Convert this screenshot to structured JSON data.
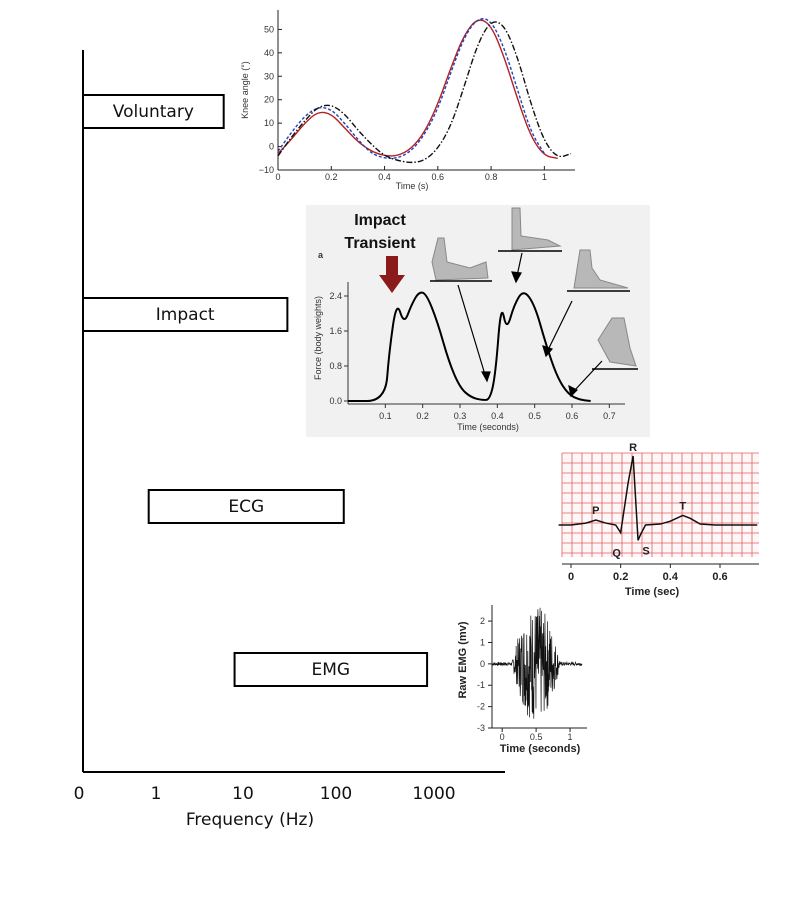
{
  "chart_data": [
    {
      "type": "bar",
      "xscale": "log",
      "xlabel": "Frequency (Hz)",
      "ticks": [
        "0",
        "1",
        "10",
        "100",
        "1000"
      ],
      "bands": [
        {
          "name": "Voluntary",
          "start": 0,
          "end": 6
        },
        {
          "name": "Impact",
          "start": 0,
          "end": 30
        },
        {
          "name": "ECG",
          "start": 0.9,
          "end": 120
        },
        {
          "name": "EMG",
          "start": 8,
          "end": 850
        }
      ],
      "colors": {
        "box": "#000000",
        "text": "#111111"
      }
    },
    {
      "type": "line",
      "xlabel": "Time (s)",
      "ylabel": "Knee angle (°)",
      "xticks": [
        "0",
        "0.2",
        "0.4",
        "0.6",
        "0.8",
        "1"
      ],
      "yticks": [
        "−10",
        "0",
        "10",
        "20",
        "30",
        "40",
        "50"
      ],
      "xlim": [
        0,
        1.1
      ],
      "ylim": [
        -10,
        57
      ],
      "series": [
        {
          "style": "solid",
          "color": "#b22222",
          "x": [
            0,
            0.05,
            0.1,
            0.15,
            0.2,
            0.25,
            0.3,
            0.35,
            0.4,
            0.45,
            0.5,
            0.55,
            0.6,
            0.65,
            0.7,
            0.75,
            0.8,
            0.85,
            0.9,
            0.95,
            1.0,
            1.05
          ],
          "y": [
            -3,
            3,
            10,
            15,
            14,
            8,
            2,
            -2,
            -4,
            -4,
            -1,
            6,
            18,
            34,
            48,
            55,
            52,
            38,
            20,
            4,
            -4,
            -5
          ]
        },
        {
          "style": "dashed",
          "color": "#1f3fbf",
          "x": [
            0,
            0.05,
            0.1,
            0.15,
            0.2,
            0.25,
            0.3,
            0.35,
            0.4,
            0.45,
            0.5,
            0.55,
            0.6,
            0.65,
            0.7,
            0.75,
            0.8,
            0.85,
            0.9,
            0.95,
            1.0
          ],
          "y": [
            -2,
            6,
            13,
            17,
            16,
            10,
            3,
            -3,
            -5,
            -5,
            -2,
            5,
            16,
            32,
            47,
            55,
            54,
            42,
            24,
            6,
            -3
          ]
        },
        {
          "style": "dashdot",
          "color": "#111111",
          "x": [
            0,
            0.05,
            0.1,
            0.15,
            0.2,
            0.25,
            0.3,
            0.35,
            0.4,
            0.45,
            0.5,
            0.55,
            0.6,
            0.65,
            0.7,
            0.75,
            0.8,
            0.85,
            0.9,
            0.95,
            1.0,
            1.05,
            1.1
          ],
          "y": [
            -4,
            4,
            11,
            17,
            18,
            14,
            7,
            1,
            -4,
            -6,
            -7,
            -6,
            -1,
            9,
            26,
            44,
            54,
            52,
            38,
            18,
            2,
            -5,
            -3
          ]
        }
      ]
    },
    {
      "type": "line",
      "title": "Impact Transient",
      "panel": "a",
      "xlabel": "Time (seconds)",
      "ylabel": "Force (body weights)",
      "xticks": [
        "0.1",
        "0.2",
        "0.3",
        "0.4",
        "0.5",
        "0.6",
        "0.7"
      ],
      "yticks": [
        "0.0",
        "0.8",
        "1.6",
        "2.4"
      ],
      "xlim": [
        0,
        0.75
      ],
      "ylim": [
        0,
        2.9
      ],
      "arrow_color": "#8b1a1a",
      "series": [
        {
          "x": [
            0,
            0.1,
            0.11,
            0.13,
            0.15,
            0.17,
            0.19,
            0.21,
            0.24,
            0.27,
            0.3,
            0.33,
            0.36,
            0.38,
            0.395,
            0.41,
            0.425,
            0.445,
            0.47,
            0.5,
            0.53,
            0.56,
            0.59,
            0.62,
            0.65
          ],
          "y": [
            0,
            0,
            1.1,
            2.3,
            1.75,
            2.2,
            2.5,
            2.45,
            1.8,
            0.9,
            0.3,
            0.08,
            0.02,
            0.03,
            0.6,
            2.25,
            1.6,
            2.2,
            2.55,
            2.2,
            1.3,
            0.55,
            0.15,
            0.03,
            0
          ]
        }
      ]
    },
    {
      "type": "line",
      "xlabel": "Time (sec)",
      "xticks": [
        "0",
        "0.2",
        "0.4",
        "0.6"
      ],
      "wave_labels": [
        "P",
        "Q",
        "R",
        "S",
        "T"
      ],
      "grid_color": "#e06060",
      "series": [
        {
          "x": [
            -0.05,
            0.0,
            0.06,
            0.1,
            0.14,
            0.18,
            0.2,
            0.23,
            0.25,
            0.27,
            0.28,
            0.3,
            0.36,
            0.4,
            0.45,
            0.48,
            0.52,
            0.58,
            0.75
          ],
          "y": [
            0,
            0,
            0.1,
            0.26,
            0.1,
            0,
            -0.4,
            2.2,
            3.6,
            -0.8,
            -0.5,
            0,
            0.05,
            0.2,
            0.5,
            0.35,
            0.05,
            0,
            0
          ]
        }
      ]
    },
    {
      "type": "line",
      "xlabel": "Time (seconds)",
      "ylabel": "Raw EMG (mv)",
      "xticks": [
        "0",
        "0.5",
        "1"
      ],
      "yticks": [
        "-3",
        "-2",
        "-1",
        "0",
        "1",
        "2"
      ],
      "xlim": [
        -0.15,
        1.25
      ],
      "ylim": [
        -3,
        2.8
      ],
      "burst": {
        "start": 0.15,
        "end": 0.85,
        "peak_amplitude": 2.6
      }
    }
  ]
}
